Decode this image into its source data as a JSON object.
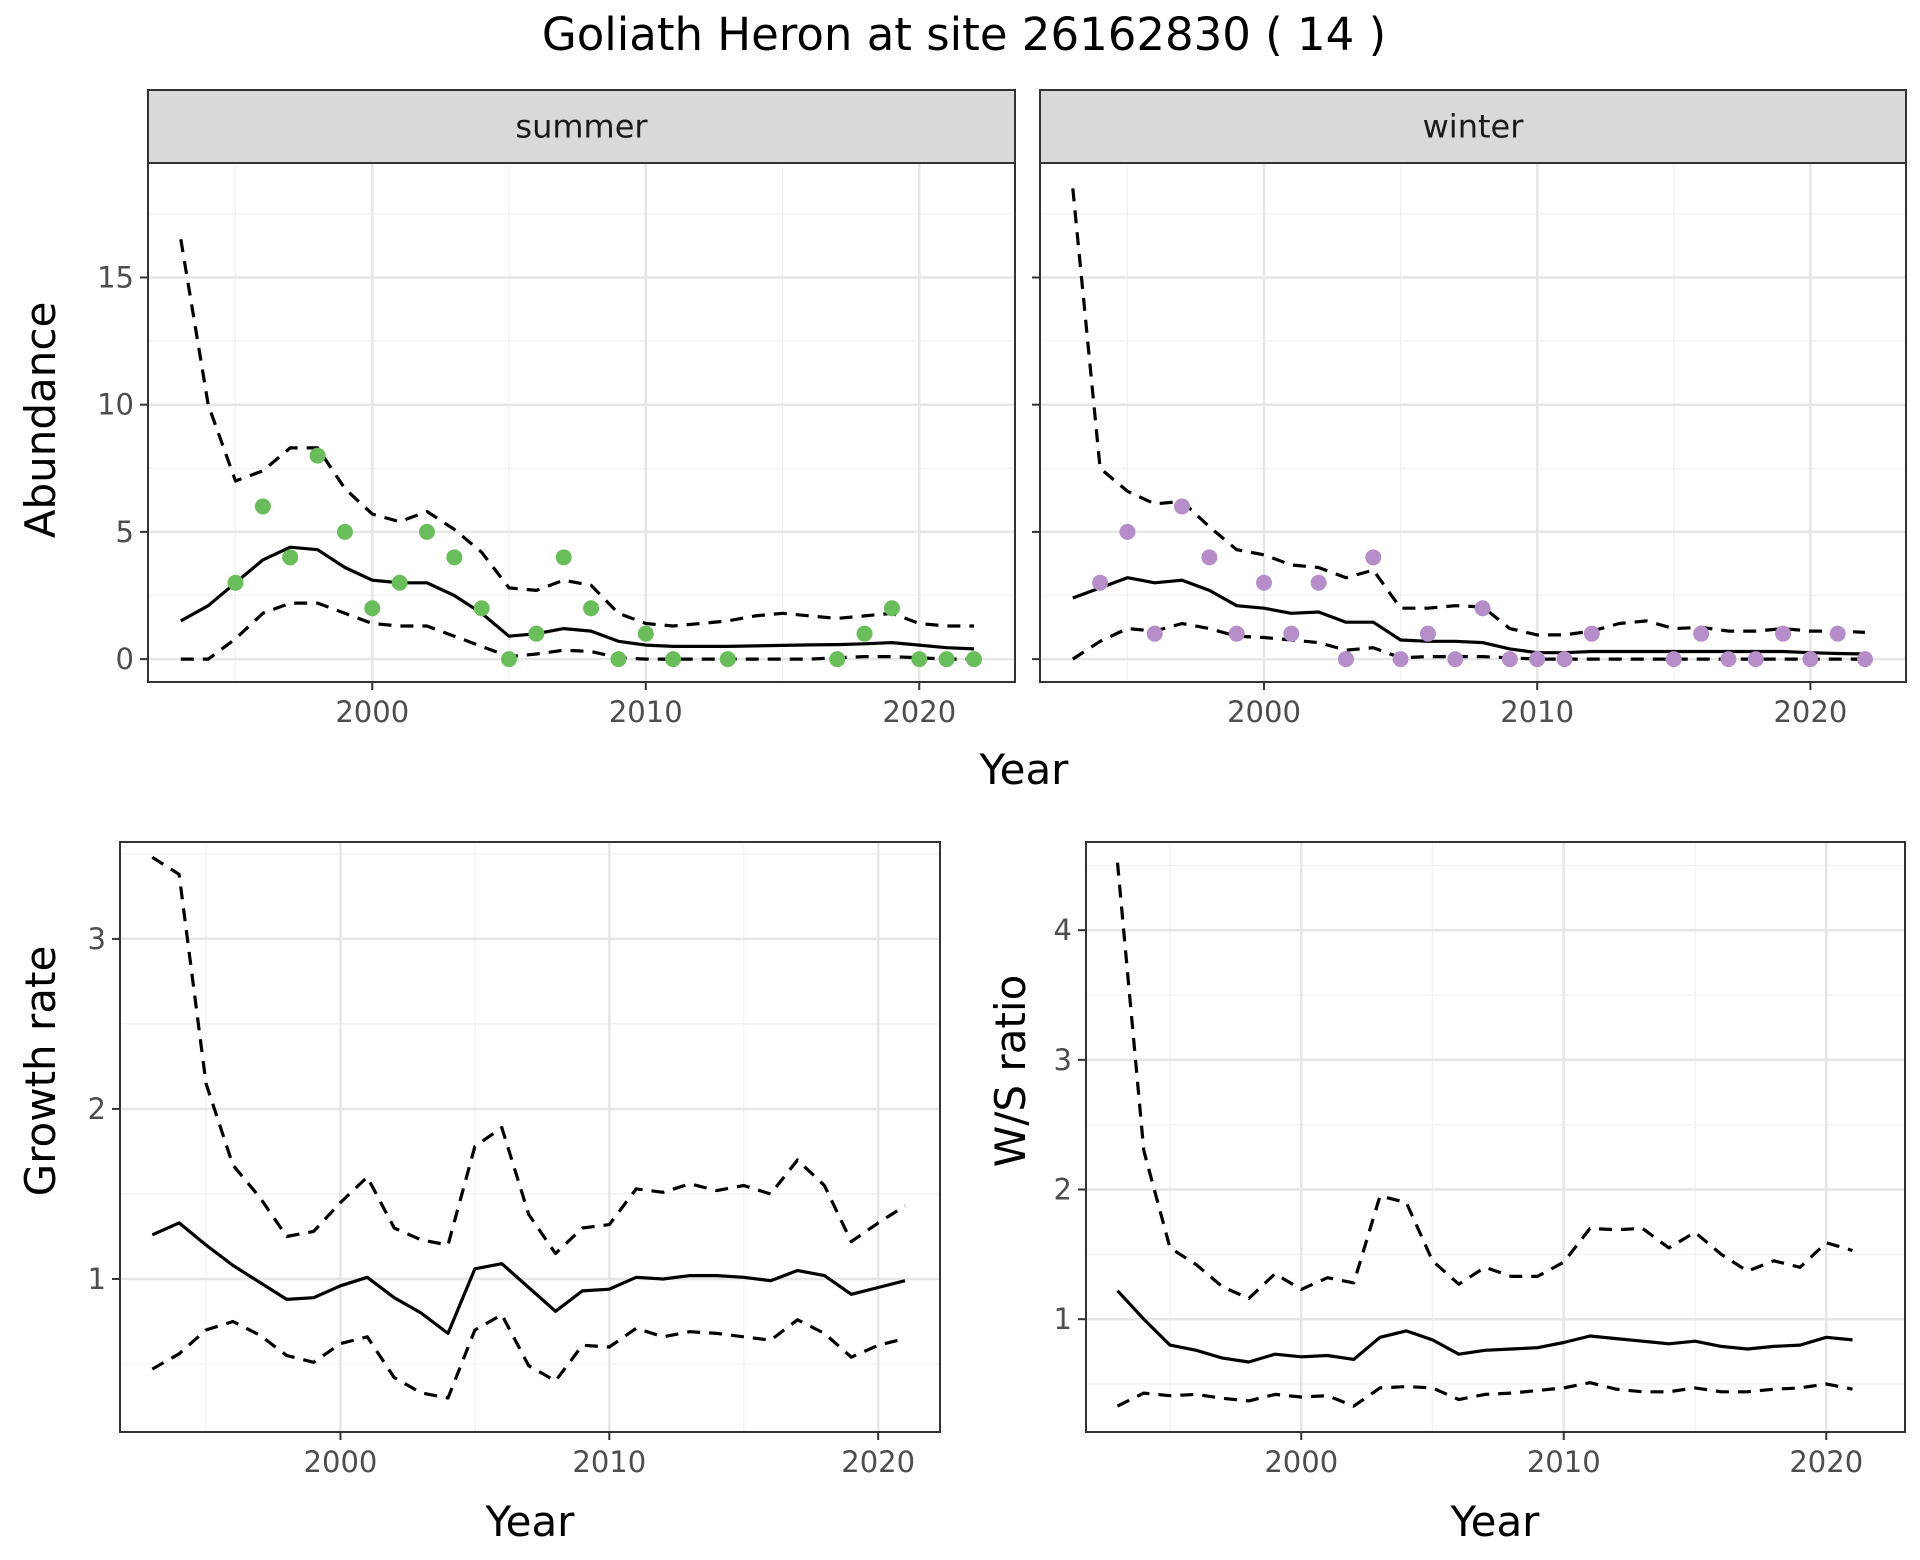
{
  "title": "Goliath Heron at site 26162830 ( 14 )",
  "colors": {
    "summer_points": "#6abd5b",
    "winter_points": "#b48dc9",
    "line": "#000000",
    "grid_major": "#e6e6e6",
    "grid_minor": "#f2f2f2",
    "strip_bg": "#d9d9d9",
    "panel_border": "#333333"
  },
  "chart_data": [
    {
      "type": "line",
      "facet": "summer",
      "xlabel": "Year",
      "ylabel": "Abundance",
      "xlim": [
        1991.8,
        2023.5
      ],
      "ylim": [
        -0.9,
        19.5
      ],
      "xticks": [
        2000,
        2010,
        2020
      ],
      "yticks": [
        0,
        5,
        10,
        15
      ],
      "grid": true,
      "x": [
        1993,
        1994,
        1995,
        1996,
        1997,
        1998,
        1999,
        2000,
        2001,
        2002,
        2003,
        2004,
        2005,
        2006,
        2007,
        2008,
        2009,
        2010,
        2011,
        2012,
        2013,
        2014,
        2015,
        2016,
        2017,
        2018,
        2019,
        2020,
        2021,
        2022
      ],
      "series": [
        {
          "role": "estimate",
          "style": "solid",
          "values": [
            1.5,
            2.1,
            3.0,
            3.9,
            4.4,
            4.3,
            3.6,
            3.1,
            3.0,
            3.0,
            2.5,
            1.8,
            0.9,
            1.0,
            1.2,
            1.1,
            0.7,
            0.55,
            0.5,
            0.5,
            0.5,
            0.52,
            0.54,
            0.56,
            0.57,
            0.6,
            0.65,
            0.55,
            0.45,
            0.4
          ]
        },
        {
          "role": "upper",
          "style": "dashed",
          "values": [
            16.5,
            10.0,
            7.0,
            7.4,
            8.3,
            8.3,
            6.7,
            5.7,
            5.4,
            5.8,
            5.1,
            4.2,
            2.8,
            2.7,
            3.1,
            2.9,
            1.8,
            1.4,
            1.3,
            1.4,
            1.5,
            1.7,
            1.8,
            1.7,
            1.6,
            1.7,
            1.8,
            1.4,
            1.3,
            1.3
          ]
        },
        {
          "role": "lower",
          "style": "dashed",
          "values": [
            0.0,
            0.0,
            0.8,
            1.8,
            2.2,
            2.2,
            1.8,
            1.4,
            1.3,
            1.3,
            0.9,
            0.5,
            0.1,
            0.2,
            0.35,
            0.3,
            0.05,
            0.0,
            0.0,
            0.0,
            0.0,
            0.0,
            0.0,
            0.0,
            0.05,
            0.1,
            0.1,
            0.05,
            0.0,
            0.0
          ]
        }
      ],
      "points": {
        "x": [
          1995,
          1996,
          1997,
          1998,
          1999,
          2000,
          2001,
          2002,
          2003,
          2004,
          2005,
          2006,
          2007,
          2008,
          2009,
          2010,
          2011,
          2013,
          2017,
          2018,
          2019,
          2020,
          2021,
          2022
        ],
        "y": [
          3,
          6,
          4,
          8,
          5,
          2,
          3,
          5,
          4,
          2,
          0,
          1,
          4,
          2,
          0,
          1,
          0,
          0,
          0,
          1,
          2,
          0,
          0,
          0
        ]
      }
    },
    {
      "type": "line",
      "facet": "winter",
      "xlabel": "Year",
      "ylabel": "Abundance",
      "xlim": [
        1991.8,
        2023.5
      ],
      "ylim": [
        -0.9,
        19.5
      ],
      "xticks": [
        2000,
        2010,
        2020
      ],
      "yticks": [
        0,
        5,
        10,
        15
      ],
      "grid": true,
      "x": [
        1993,
        1994,
        1995,
        1996,
        1997,
        1998,
        1999,
        2000,
        2001,
        2002,
        2003,
        2004,
        2005,
        2006,
        2007,
        2008,
        2009,
        2010,
        2011,
        2012,
        2013,
        2014,
        2015,
        2016,
        2017,
        2018,
        2019,
        2020,
        2021,
        2022
      ],
      "series": [
        {
          "role": "estimate",
          "style": "solid",
          "values": [
            2.4,
            2.8,
            3.2,
            3.0,
            3.1,
            2.7,
            2.1,
            2.0,
            1.8,
            1.85,
            1.45,
            1.45,
            0.75,
            0.7,
            0.7,
            0.65,
            0.4,
            0.25,
            0.25,
            0.3,
            0.3,
            0.3,
            0.3,
            0.3,
            0.3,
            0.3,
            0.3,
            0.25,
            0.22,
            0.2
          ]
        },
        {
          "role": "upper",
          "style": "dashed",
          "values": [
            18.5,
            7.5,
            6.6,
            6.1,
            6.2,
            5.2,
            4.3,
            4.1,
            3.7,
            3.6,
            3.2,
            3.5,
            2.0,
            2.0,
            2.1,
            2.05,
            1.2,
            0.95,
            0.95,
            1.1,
            1.4,
            1.5,
            1.2,
            1.25,
            1.1,
            1.1,
            1.2,
            1.1,
            1.1,
            1.05
          ]
        },
        {
          "role": "lower",
          "style": "dashed",
          "values": [
            0.0,
            0.7,
            1.2,
            1.1,
            1.4,
            1.2,
            0.9,
            0.85,
            0.75,
            0.65,
            0.35,
            0.45,
            0.05,
            0.1,
            0.1,
            0.1,
            0.05,
            0.0,
            0.0,
            0.0,
            0.0,
            0.0,
            0.0,
            0.0,
            0.0,
            0.0,
            0.0,
            0.0,
            0.0,
            0.0
          ]
        }
      ],
      "points": {
        "x": [
          1994,
          1995,
          1996,
          1997,
          1998,
          1999,
          2000,
          2001,
          2002,
          2003,
          2004,
          2005,
          2006,
          2007,
          2008,
          2009,
          2010,
          2011,
          2012,
          2015,
          2016,
          2017,
          2018,
          2019,
          2020,
          2021,
          2022
        ],
        "y": [
          3,
          5,
          1,
          6,
          4,
          1,
          3,
          1,
          3,
          0,
          4,
          0,
          1,
          0,
          2,
          0,
          0,
          0,
          1,
          0,
          1,
          0,
          0,
          1,
          0,
          1,
          0
        ]
      }
    },
    {
      "type": "line",
      "xlabel": "Year",
      "ylabel": "Growth rate",
      "xlim": [
        1991.8,
        2022.3
      ],
      "ylim": [
        0.1,
        3.57
      ],
      "xticks": [
        2000,
        2010,
        2020
      ],
      "yticks": [
        1,
        2,
        3
      ],
      "grid": true,
      "x": [
        1993,
        1994,
        1995,
        1996,
        1997,
        1998,
        1999,
        2000,
        2001,
        2002,
        2003,
        2004,
        2005,
        2006,
        2007,
        2008,
        2009,
        2010,
        2011,
        2012,
        2013,
        2014,
        2015,
        2016,
        2017,
        2018,
        2019,
        2020,
        2021
      ],
      "series": [
        {
          "role": "estimate",
          "style": "solid",
          "values": [
            1.26,
            1.33,
            1.2,
            1.08,
            0.98,
            0.88,
            0.89,
            0.96,
            1.01,
            0.89,
            0.8,
            0.68,
            1.06,
            1.09,
            0.95,
            0.81,
            0.93,
            0.94,
            1.01,
            1.0,
            1.02,
            1.02,
            1.01,
            0.99,
            1.05,
            1.02,
            0.91,
            0.95,
            0.99
          ]
        },
        {
          "role": "upper",
          "style": "dashed",
          "values": [
            3.48,
            3.38,
            2.15,
            1.67,
            1.48,
            1.25,
            1.28,
            1.45,
            1.6,
            1.3,
            1.23,
            1.2,
            1.78,
            1.89,
            1.38,
            1.15,
            1.3,
            1.32,
            1.53,
            1.51,
            1.56,
            1.52,
            1.55,
            1.5,
            1.7,
            1.55,
            1.22,
            1.33,
            1.43
          ]
        },
        {
          "role": "lower",
          "style": "dashed",
          "values": [
            0.47,
            0.56,
            0.7,
            0.75,
            0.67,
            0.55,
            0.51,
            0.62,
            0.66,
            0.42,
            0.33,
            0.3,
            0.7,
            0.79,
            0.49,
            0.4,
            0.61,
            0.6,
            0.71,
            0.66,
            0.69,
            0.68,
            0.66,
            0.64,
            0.76,
            0.68,
            0.54,
            0.61,
            0.65
          ]
        }
      ]
    },
    {
      "type": "line",
      "xlabel": "Year",
      "ylabel": "W/S ratio",
      "xlim": [
        1991.8,
        2023.0
      ],
      "ylim": [
        0.13,
        4.68
      ],
      "xticks": [
        2000,
        2010,
        2020
      ],
      "yticks": [
        1,
        2,
        3,
        4
      ],
      "grid": true,
      "x": [
        1993,
        1994,
        1995,
        1996,
        1997,
        1998,
        1999,
        2000,
        2001,
        2002,
        2003,
        2004,
        2005,
        2006,
        2007,
        2008,
        2009,
        2010,
        2011,
        2012,
        2013,
        2014,
        2015,
        2016,
        2017,
        2018,
        2019,
        2020,
        2021
      ],
      "series": [
        {
          "role": "estimate",
          "style": "solid",
          "values": [
            1.22,
            1.0,
            0.8,
            0.76,
            0.7,
            0.67,
            0.73,
            0.71,
            0.72,
            0.69,
            0.86,
            0.91,
            0.84,
            0.73,
            0.76,
            0.77,
            0.78,
            0.82,
            0.87,
            0.85,
            0.83,
            0.81,
            0.83,
            0.79,
            0.77,
            0.79,
            0.8,
            0.86,
            0.84
          ]
        },
        {
          "role": "upper",
          "style": "dashed",
          "values": [
            4.52,
            2.3,
            1.55,
            1.42,
            1.25,
            1.16,
            1.35,
            1.23,
            1.32,
            1.28,
            1.95,
            1.9,
            1.45,
            1.27,
            1.4,
            1.33,
            1.33,
            1.44,
            1.7,
            1.69,
            1.7,
            1.55,
            1.67,
            1.5,
            1.37,
            1.45,
            1.4,
            1.59,
            1.53
          ]
        },
        {
          "role": "lower",
          "style": "dashed",
          "values": [
            0.33,
            0.43,
            0.41,
            0.42,
            0.39,
            0.37,
            0.42,
            0.4,
            0.41,
            0.33,
            0.47,
            0.48,
            0.47,
            0.38,
            0.42,
            0.43,
            0.45,
            0.47,
            0.51,
            0.46,
            0.44,
            0.44,
            0.47,
            0.44,
            0.44,
            0.46,
            0.47,
            0.5,
            0.46
          ]
        }
      ]
    }
  ]
}
